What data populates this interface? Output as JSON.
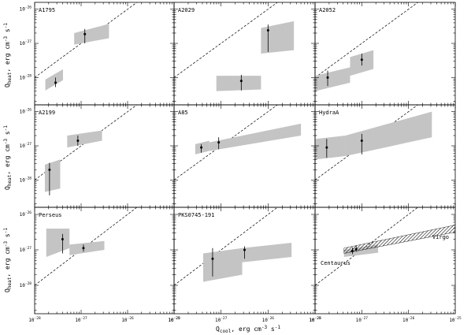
{
  "chart_data": {
    "type": "scatter",
    "layout": "3x3 grid of panels with shared axes",
    "xlabel": "Q",
    "xlabel_sub": "cool",
    "xlabel_units": ", erg cm",
    "xlabel_exp": "-3",
    "xlabel_tail": " s",
    "xlabel_exp2": "-1",
    "ylabel": "Q",
    "ylabel_sub": "heat",
    "ylabel_units": ", erg cm",
    "ylabel_exp": "-3",
    "ylabel_tail": " s",
    "ylabel_exp2": "-1",
    "xscale": "log",
    "yscale": "log",
    "xlim_log10": [
      -28,
      -25
    ],
    "ylim_log10": [
      -28.8,
      -25.8
    ],
    "x_tick_mantissa": "10",
    "x_ticks_exp": [
      "-28",
      "-27",
      "-26",
      "-25"
    ],
    "y_tick_mantissa": "10",
    "y_ticks_exp": [
      "-28",
      "-27",
      "-26"
    ],
    "reference_line": "Q_heat = Q_cool (dashed)",
    "panels": [
      {
        "name": "A1795",
        "bands": [
          {
            "x_log": [
              -27.77,
              -27.39
            ],
            "lower_log": [
              -28.38,
              -28.08
            ],
            "upper_log": [
              -28.06,
              -27.76
            ]
          },
          {
            "x_log": [
              -27.15,
              -26.4
            ],
            "lower_log": [
              -27.04,
              -26.85
            ],
            "upper_log": [
              -26.7,
              -26.43
            ]
          }
        ],
        "points": [
          {
            "x_log": -27.55,
            "y_log": -28.15,
            "err_lo_log": -28.28,
            "err_hi_log": -28.0
          },
          {
            "x_log": -26.92,
            "y_log": -26.73,
            "err_lo_log": -27.0,
            "err_hi_log": -26.58
          }
        ]
      },
      {
        "name": "A2029",
        "bands": [
          {
            "x_log": [
              -27.1,
              -26.15
            ],
            "lower_log": [
              -28.4,
              -28.35
            ],
            "upper_log": [
              -27.95,
              -27.95
            ]
          },
          {
            "x_log": [
              -26.15,
              -25.45
            ],
            "lower_log": [
              -27.3,
              -27.2
            ],
            "upper_log": [
              -26.55,
              -26.35
            ]
          }
        ],
        "points": [
          {
            "x_log": -26.57,
            "y_log": -28.1,
            "err_lo_log": -28.38,
            "err_hi_log": -27.92
          },
          {
            "x_log": -26.0,
            "y_log": -26.62,
            "err_lo_log": -27.25,
            "err_hi_log": -26.45
          }
        ]
      },
      {
        "name": "A2052",
        "bands": [
          {
            "x_log": [
              -28.0,
              -27.25
            ],
            "lower_log": [
              -28.4,
              -28.15
            ],
            "upper_log": [
              -27.95,
              -27.7
            ]
          },
          {
            "x_log": [
              -27.25,
              -26.75
            ],
            "lower_log": [
              -27.95,
              -27.75
            ],
            "upper_log": [
              -27.4,
              -27.2
            ]
          }
        ],
        "points": [
          {
            "x_log": -27.73,
            "y_log": -28.0,
            "err_lo_log": -28.25,
            "err_hi_log": -27.8
          },
          {
            "x_log": -27.0,
            "y_log": -27.48,
            "err_lo_log": -27.65,
            "err_hi_log": -27.3
          }
        ]
      },
      {
        "name": "A2199",
        "bands": [
          {
            "x_log": [
              -27.78,
              -27.45
            ],
            "lower_log": [
              -28.35,
              -28.25
            ],
            "upper_log": [
              -27.55,
              -27.4
            ]
          },
          {
            "x_log": [
              -27.3,
              -26.55
            ],
            "lower_log": [
              -27.05,
              -26.85
            ],
            "upper_log": [
              -26.7,
              -26.55
            ]
          }
        ],
        "points": [
          {
            "x_log": -27.68,
            "y_log": -27.7,
            "err_lo_log": -28.45,
            "err_hi_log": -27.5
          },
          {
            "x_log": -27.07,
            "y_log": -26.85,
            "err_lo_log": -27.0,
            "err_hi_log": -26.7
          }
        ]
      },
      {
        "name": "A85",
        "bands": [
          {
            "x_log": [
              -27.55,
              -27.25
            ],
            "lower_log": [
              -27.25,
              -27.15
            ],
            "upper_log": [
              -26.95,
              -26.85
            ]
          },
          {
            "x_log": [
              -27.25,
              -25.3
            ],
            "lower_log": [
              -27.15,
              -26.7
            ],
            "upper_log": [
              -26.9,
              -26.35
            ]
          }
        ],
        "points": [
          {
            "x_log": -27.42,
            "y_log": -27.05,
            "err_lo_log": -27.2,
            "err_hi_log": -26.95
          },
          {
            "x_log": -27.05,
            "y_log": -26.9,
            "err_lo_log": -27.1,
            "err_hi_log": -26.75
          }
        ]
      },
      {
        "name": "HydraA",
        "bands": [
          {
            "x_log": [
              -28.0,
              -27.35
            ],
            "lower_log": [
              -27.4,
              -27.3
            ],
            "upper_log": [
              -26.8,
              -26.7
            ]
          },
          {
            "x_log": [
              -27.35,
              -25.5
            ],
            "lower_log": [
              -27.3,
              -26.75
            ],
            "upper_log": [
              -26.7,
              -26.0
            ]
          }
        ],
        "points": [
          {
            "x_log": -27.75,
            "y_log": -27.05,
            "err_lo_log": -27.35,
            "err_hi_log": -26.8
          },
          {
            "x_log": -27.0,
            "y_log": -26.85,
            "err_lo_log": -27.25,
            "err_hi_log": -26.65
          }
        ]
      },
      {
        "name": "Perseus",
        "bands": [
          {
            "x_log": [
              -27.75,
              -27.25
            ],
            "lower_log": [
              -27.2,
              -26.95
            ],
            "upper_log": [
              -26.4,
              -26.4
            ]
          },
          {
            "x_log": [
              -27.25,
              -26.5
            ],
            "lower_log": [
              -27.15,
              -27.0
            ],
            "upper_log": [
              -26.85,
              -26.75
            ]
          }
        ],
        "points": [
          {
            "x_log": -27.4,
            "y_log": -26.7,
            "err_lo_log": -27.1,
            "err_hi_log": -26.55
          },
          {
            "x_log": -26.95,
            "y_log": -26.95,
            "err_lo_log": -27.05,
            "err_hi_log": -26.85
          }
        ]
      },
      {
        "name": "PKS0745-191",
        "bands": [
          {
            "x_log": [
              -27.38,
              -26.55
            ],
            "lower_log": [
              -27.9,
              -27.7
            ],
            "upper_log": [
              -27.1,
              -26.95
            ]
          },
          {
            "x_log": [
              -26.55,
              -25.5
            ],
            "lower_log": [
              -27.35,
              -27.2
            ],
            "upper_log": [
              -26.95,
              -26.8
            ]
          }
        ],
        "points": [
          {
            "x_log": -27.18,
            "y_log": -27.25,
            "err_lo_log": -27.75,
            "err_hi_log": -26.95
          },
          {
            "x_log": -26.5,
            "y_log": -27.0,
            "err_lo_log": -27.25,
            "err_hi_log": -26.9
          }
        ]
      },
      {
        "name": "Virgo / Centaurus",
        "labels": [
          "Virgo",
          "Centaurus"
        ],
        "bands": [
          {
            "x_log": [
              -27.38,
              -26.65
            ],
            "lower_log": [
              -27.2,
              -27.08
            ],
            "upper_log": [
              -27.0,
              -26.85
            ]
          }
        ],
        "hatched_bands": [
          {
            "x_log": [
              -27.38,
              -25.0
            ],
            "lower_log": [
              -27.1,
              -26.5
            ],
            "upper_log": [
              -26.95,
              -26.3
            ]
          }
        ],
        "points": [
          {
            "x_log": -27.2,
            "y_log": -27.03,
            "err_lo_log": -27.12,
            "err_hi_log": -26.93
          },
          {
            "x_log": -27.12,
            "y_log": -26.98,
            "err_lo_log": -27.05,
            "err_hi_log": -26.88
          }
        ]
      }
    ]
  }
}
